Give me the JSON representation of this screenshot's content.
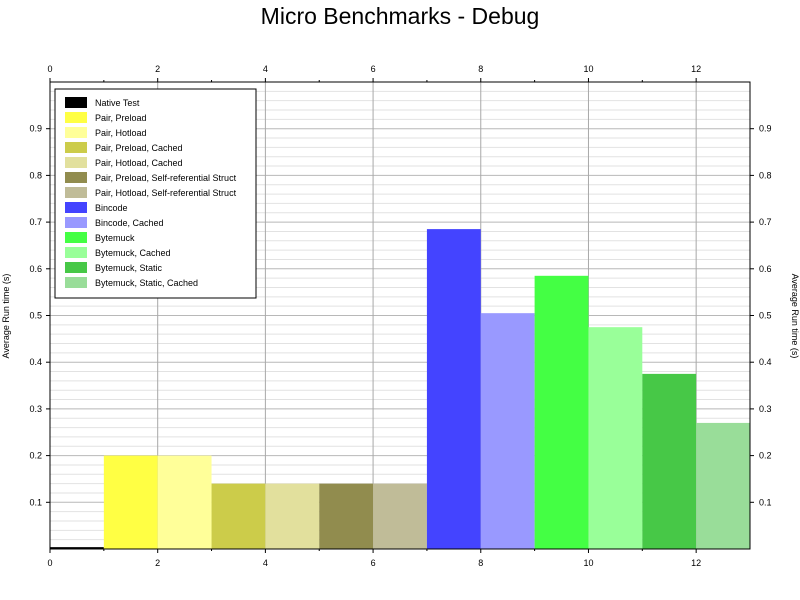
{
  "chart_data": {
    "type": "bar",
    "title": "Micro Benchmarks - Debug",
    "ylabel": "Average Run time (s)",
    "xlim": [
      0,
      13
    ],
    "ylim": [
      0,
      1
    ],
    "x_ticks": [
      "0",
      "2",
      "4",
      "6",
      "8",
      "10",
      "12"
    ],
    "y_ticks": [
      "0.1",
      "0.2",
      "0.3",
      "0.4",
      "0.5",
      "0.6",
      "0.7",
      "0.8",
      "0.9"
    ],
    "grid": true,
    "legend_position": "top-left",
    "series": [
      {
        "name": "Native Test",
        "x": 0.5,
        "value": 0.004,
        "color": "#000000"
      },
      {
        "name": "Pair, Preload",
        "x": 1.5,
        "value": 0.2,
        "color": "#ffff44"
      },
      {
        "name": "Pair, Hotload",
        "x": 2.5,
        "value": 0.2,
        "color": "#ffff99"
      },
      {
        "name": "Pair, Preload, Cached",
        "x": 3.5,
        "value": 0.14,
        "color": "#cccc4a"
      },
      {
        "name": "Pair, Hotload, Cached",
        "x": 4.5,
        "value": 0.14,
        "color": "#e2e09d"
      },
      {
        "name": "Pair, Preload, Self-referential Struct",
        "x": 5.5,
        "value": 0.14,
        "color": "#918c4e"
      },
      {
        "name": "Pair, Hotload, Self-referential Struct",
        "x": 6.5,
        "value": 0.14,
        "color": "#c0bc98"
      },
      {
        "name": "Bincode",
        "x": 7.5,
        "value": 0.685,
        "color": "#4444ff"
      },
      {
        "name": "Bincode, Cached",
        "x": 8.5,
        "value": 0.505,
        "color": "#9999ff"
      },
      {
        "name": "Bytemuck",
        "x": 9.5,
        "value": 0.585,
        "color": "#44ff44"
      },
      {
        "name": "Bytemuck, Cached",
        "x": 10.5,
        "value": 0.475,
        "color": "#99ff99"
      },
      {
        "name": "Bytemuck, Static",
        "x": 11.5,
        "value": 0.375,
        "color": "#47c847"
      },
      {
        "name": "Bytemuck, Static, Cached",
        "x": 12.5,
        "value": 0.27,
        "color": "#99dd99"
      }
    ]
  }
}
